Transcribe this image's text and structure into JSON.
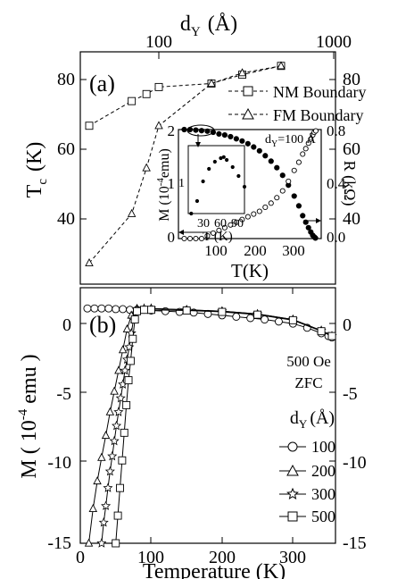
{
  "chart_data": [
    {
      "panel": "a",
      "panel_label": "(a)",
      "type": "line",
      "ylabel": "T",
      "ylabel_sub": "c",
      "ylabel_unit": "(K)",
      "top_axis_label": "d",
      "top_axis_sub": "Y",
      "top_axis_unit": "(Å)",
      "top_axis_scale": "log",
      "top_ticks": [
        "100",
        "1000"
      ],
      "ylim": [
        20,
        86
      ],
      "left_ticks": [
        "40",
        "60",
        "80"
      ],
      "right_ticks": [
        "40",
        "60",
        "80"
      ],
      "legend_position": "top-right",
      "series": [
        {
          "name": "NM Boundary",
          "marker": "square",
          "line": "dashed",
          "x_dY": [
            40,
            70,
            85,
            100,
            200,
            300,
            500
          ],
          "y": [
            65,
            72,
            74,
            76,
            77,
            79.5,
            82
          ]
        },
        {
          "name": "FM Boundary",
          "marker": "triangle",
          "line": "dashed",
          "x_dY": [
            40,
            70,
            85,
            100,
            200,
            300,
            500
          ],
          "y": [
            26,
            40,
            53,
            65,
            77,
            80,
            82
          ]
        }
      ],
      "inset": {
        "type": "scatter",
        "annotation": "d",
        "annotation_sub": "Y",
        "annotation_rest": "=100 Å",
        "xlabel": "T(K)",
        "xticks": [
          "100",
          "200",
          "300"
        ],
        "xlim": [
          0,
          370
        ],
        "left_label": "M (10",
        "left_label_sup": "-4",
        "left_label_unit": "emu)",
        "left_ticks": [
          "0",
          "1",
          "2"
        ],
        "left_lim": [
          0,
          2
        ],
        "right_label": "R (kΩ)",
        "right_ticks": [
          "0.0",
          "0.4",
          "0.8"
        ],
        "right_lim": [
          0,
          0.8
        ],
        "magnetization": {
          "marker": "filled-circle",
          "T": [
            15,
            30,
            45,
            60,
            75,
            90,
            105,
            120,
            135,
            150,
            165,
            180,
            195,
            210,
            225,
            240,
            255,
            270,
            285,
            300,
            312,
            322,
            330,
            337,
            343,
            348,
            352,
            355
          ],
          "M": [
            2.0,
            2.0,
            1.99,
            1.98,
            1.97,
            1.95,
            1.92,
            1.9,
            1.87,
            1.83,
            1.79,
            1.74,
            1.68,
            1.61,
            1.52,
            1.42,
            1.3,
            1.16,
            0.98,
            0.78,
            0.6,
            0.42,
            0.3,
            0.2,
            0.12,
            0.06,
            0.03,
            0.01
          ]
        },
        "resistance": {
          "marker": "open-circle",
          "T": [
            15,
            30,
            45,
            60,
            75,
            90,
            105,
            120,
            135,
            150,
            165,
            180,
            195,
            210,
            225,
            240,
            255,
            270,
            285,
            300,
            312,
            322,
            330,
            337,
            343,
            348,
            352,
            356
          ],
          "R": [
            0.0,
            0.0,
            0.0,
            0.0,
            0.02,
            0.04,
            0.06,
            0.08,
            0.1,
            0.12,
            0.14,
            0.16,
            0.18,
            0.2,
            0.23,
            0.26,
            0.3,
            0.35,
            0.42,
            0.5,
            0.56,
            0.62,
            0.66,
            0.7,
            0.73,
            0.76,
            0.78,
            0.79
          ]
        },
        "sub_inset": {
          "xlabel": "T (K)",
          "xticks": [
            "30",
            "60",
            "90"
          ],
          "xlim": [
            0,
            95
          ],
          "ylim": [
            0,
            1.9
          ],
          "yticks": [
            "1"
          ],
          "T": [
            5,
            15,
            25,
            35,
            45,
            55,
            60,
            65,
            75,
            85,
            95
          ],
          "M": [
            0.0,
            0.35,
            0.9,
            1.25,
            1.45,
            1.55,
            1.58,
            1.5,
            1.3,
            1.05,
            0.75
          ]
        }
      }
    },
    {
      "panel": "b",
      "panel_label": "(b)",
      "type": "line",
      "xlabel": "Temperature (K)",
      "ylabel": "M ( 10",
      "ylabel_sup": "-4",
      "ylabel_unit": " emu )",
      "xlim": [
        0,
        360
      ],
      "ylim": [
        -15,
        3.5
      ],
      "xticks": [
        "0",
        "100",
        "200",
        "300"
      ],
      "left_ticks": [
        "0",
        "-5",
        "-10",
        "-15"
      ],
      "right_ticks": [
        "0",
        "-5",
        "-10",
        "-15"
      ],
      "annotation_field": "500 Oe",
      "annotation_mode": "ZFC",
      "legend_title": "d",
      "legend_title_sub": "Y",
      "legend_title_unit": "(Å)",
      "legend_position": "lower-right",
      "series": [
        {
          "name": "100",
          "marker": "circle",
          "x": [
            10,
            20,
            30,
            40,
            50,
            60,
            70,
            80,
            90,
            100,
            120,
            140,
            160,
            180,
            200,
            220,
            240,
            260,
            280,
            300,
            320,
            340,
            350,
            355
          ],
          "y": [
            2.0,
            2.0,
            2.0,
            2.0,
            1.95,
            1.95,
            1.9,
            1.9,
            1.9,
            1.85,
            1.8,
            1.75,
            1.7,
            1.6,
            1.5,
            1.4,
            1.3,
            1.2,
            1.05,
            0.9,
            0.6,
            0.2,
            0.0,
            -0.1
          ]
        },
        {
          "name": "200",
          "marker": "triangle",
          "x": [
            12,
            18,
            24,
            30,
            36,
            42,
            48,
            54,
            60,
            66,
            72,
            80,
            100,
            150,
            200,
            250,
            300,
            340,
            355
          ],
          "y": [
            -15.0,
            -12.5,
            -10.5,
            -8.8,
            -7.2,
            -5.5,
            -4.0,
            -2.5,
            -1.0,
            0.5,
            1.5,
            2.0,
            2.0,
            1.9,
            1.8,
            1.6,
            1.2,
            0.4,
            0.0
          ]
        },
        {
          "name": "300",
          "marker": "star",
          "x": [
            30,
            33,
            36,
            39,
            42,
            45,
            48,
            51,
            54,
            57,
            60,
            63,
            66,
            69,
            72,
            75,
            80,
            90,
            100,
            150,
            200,
            250,
            300,
            340,
            355
          ],
          "y": [
            -15.0,
            -13.5,
            -12.3,
            -11.0,
            -9.8,
            -8.7,
            -7.6,
            -6.5,
            -5.5,
            -4.5,
            -3.5,
            -2.5,
            -1.7,
            -0.8,
            0.2,
            1.2,
            1.9,
            2.0,
            2.0,
            1.9,
            1.8,
            1.6,
            1.2,
            0.4,
            0.0
          ]
        },
        {
          "name": "500",
          "marker": "square",
          "x": [
            50,
            53,
            56,
            59,
            62,
            65,
            68,
            71,
            74,
            77,
            80,
            90,
            100,
            150,
            200,
            250,
            300,
            340,
            355
          ],
          "y": [
            -15.0,
            -13.0,
            -11.0,
            -9.0,
            -7.0,
            -5.0,
            -3.2,
            -1.8,
            -0.2,
            1.2,
            1.8,
            1.9,
            1.9,
            1.85,
            1.75,
            1.55,
            1.15,
            0.35,
            0.0
          ]
        }
      ]
    }
  ]
}
